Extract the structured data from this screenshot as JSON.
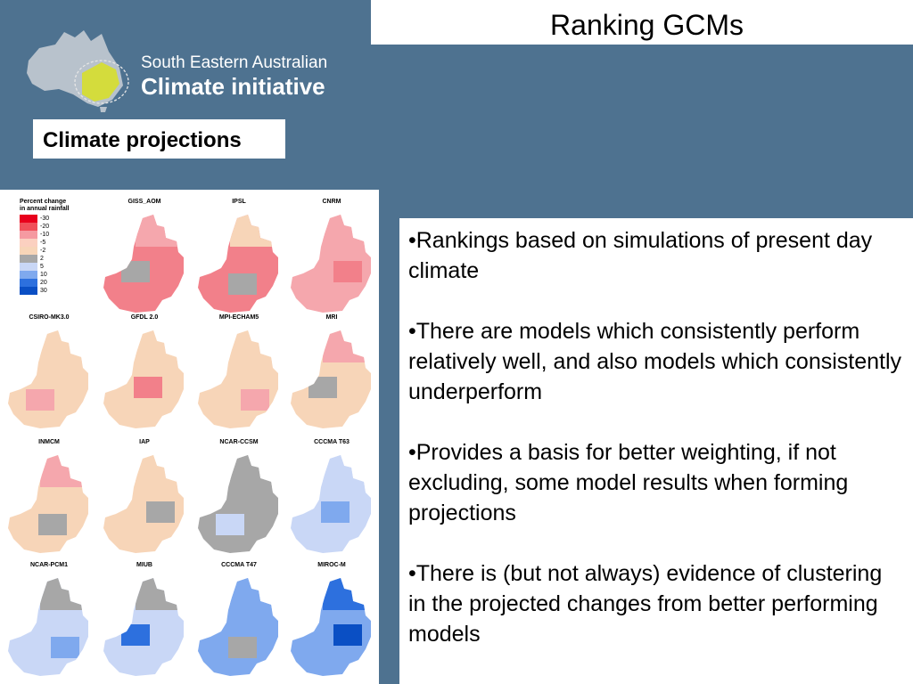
{
  "header": {
    "title": "Ranking GCMs"
  },
  "logo": {
    "line1": "South Eastern Australian",
    "line2": "Climate initiative"
  },
  "section_label": "Climate projections",
  "legend": {
    "title": [
      "Percent change",
      "in annual rainfall"
    ],
    "entries": [
      {
        "label": "-30",
        "color": "#e8001c"
      },
      {
        "label": "-20",
        "color": "#f0505a"
      },
      {
        "label": "-10",
        "color": "#f59aa1"
      },
      {
        "label": "-5",
        "color": "#fbd0c0"
      },
      {
        "label": "-2",
        "color": "#f7d5b8"
      },
      {
        "label": "2",
        "color": "#a7a7a7"
      },
      {
        "label": "5",
        "color": "#c9d7f6"
      },
      {
        "label": "10",
        "color": "#7fa9ee"
      },
      {
        "label": "20",
        "color": "#2d70de"
      },
      {
        "label": "30",
        "color": "#0a4fc4"
      }
    ]
  },
  "maps": [
    {
      "name": "GISS_AOM",
      "main": "#f2808a",
      "patch": "#a7a7a7",
      "north": "#f5a7ad"
    },
    {
      "name": "IPSL",
      "main": "#f2808a",
      "patch": "#a7a7a7",
      "north": "#f7d5b8"
    },
    {
      "name": "CNRM",
      "main": "#f5a7ad",
      "patch": "#f2808a",
      "north": "#f5a7ad"
    },
    {
      "name": "CSIRO-MK3.0",
      "main": "#f7d5b8",
      "patch": "#f5a7ad",
      "north": "#f7d5b8"
    },
    {
      "name": "GFDL 2.0",
      "main": "#f7d5b8",
      "patch": "#f2808a",
      "north": "#f7d5b8"
    },
    {
      "name": "MPI-ECHAM5",
      "main": "#f7d5b8",
      "patch": "#f5a7ad",
      "north": "#f7d5b8"
    },
    {
      "name": "MRI",
      "main": "#f7d5b8",
      "patch": "#a7a7a7",
      "north": "#f5a7ad"
    },
    {
      "name": "INMCM",
      "main": "#f7d5b8",
      "patch": "#a7a7a7",
      "north": "#f5a7ad"
    },
    {
      "name": "IAP",
      "main": "#f7d5b8",
      "patch": "#a7a7a7",
      "north": "#f7d5b8"
    },
    {
      "name": "NCAR-CCSM",
      "main": "#a7a7a7",
      "patch": "#c9d7f6",
      "north": "#a7a7a7"
    },
    {
      "name": "CCCMA T63",
      "main": "#c9d7f6",
      "patch": "#7fa9ee",
      "north": "#c9d7f6"
    },
    {
      "name": "NCAR-PCM1",
      "main": "#c9d7f6",
      "patch": "#7fa9ee",
      "north": "#a7a7a7"
    },
    {
      "name": "MIUB",
      "main": "#c9d7f6",
      "patch": "#2d70de",
      "north": "#a7a7a7"
    },
    {
      "name": "CCCMA T47",
      "main": "#7fa9ee",
      "patch": "#a7a7a7",
      "north": "#7fa9ee"
    },
    {
      "name": "MIROC-M",
      "main": "#7fa9ee",
      "patch": "#0a4fc4",
      "north": "#2d70de"
    }
  ],
  "bullets": [
    "•Rankings based on simulations of present day climate",
    "•There are models which consistently perform relatively well, and also models which consistently underperform",
    "•Provides a basis for better weighting, if not excluding, some model results when forming projections",
    "•There is (but not always) evidence of clustering in the projected changes from better performing models"
  ]
}
